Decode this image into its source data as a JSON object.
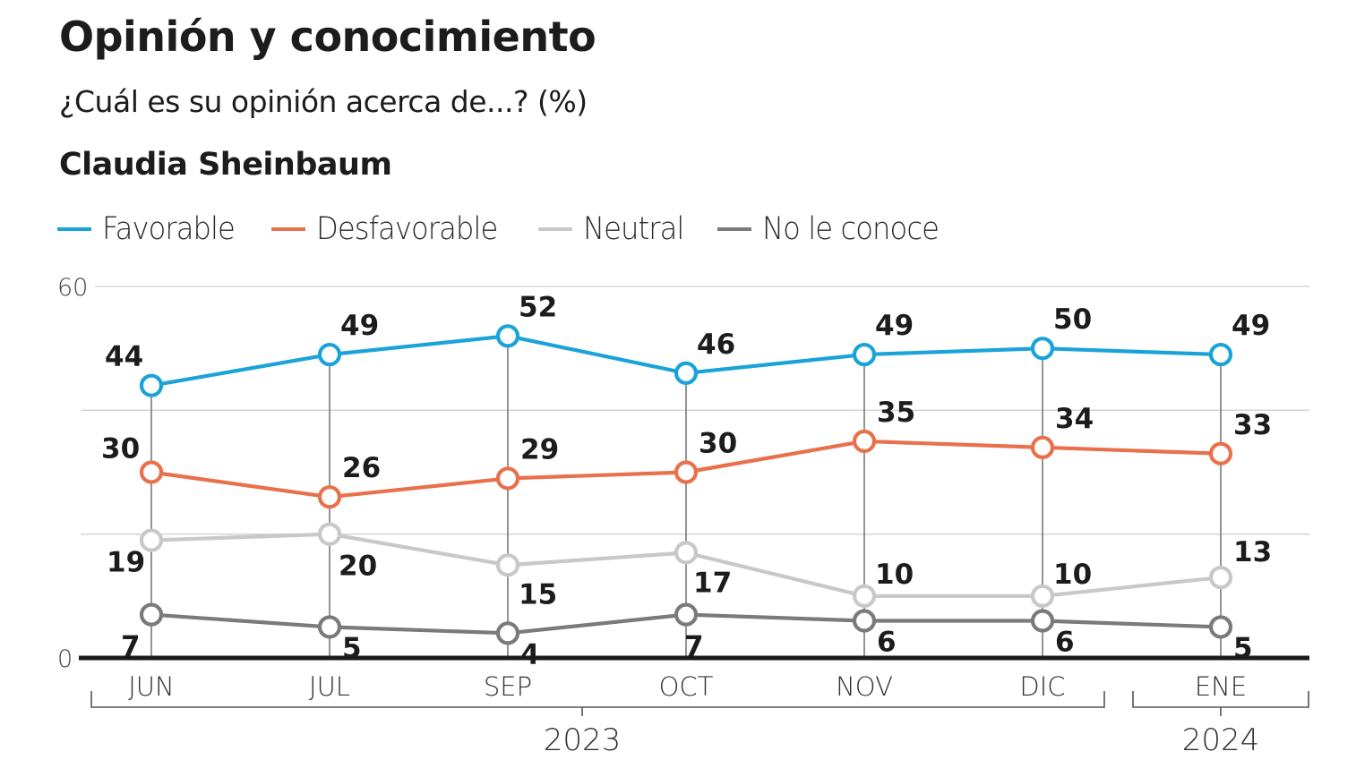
{
  "header": {
    "title": "Opinión y conocimiento",
    "subtitle": "¿Cuál es su opinión acerca de...? (%)",
    "person": "Claudia Sheinbaum"
  },
  "chart_data": {
    "type": "line",
    "title": "Opinión y conocimiento",
    "subtitle": "¿Cuál es su opinión acerca de...? (%)",
    "panel_title": "Claudia Sheinbaum",
    "xlabel": "",
    "ylabel": "",
    "categories": [
      "JUN",
      "JUL",
      "SEP",
      "OCT",
      "NOV",
      "DIC",
      "ENE"
    ],
    "year_groups": [
      {
        "label": "2023",
        "from": "JUN",
        "to": "DIC"
      },
      {
        "label": "2024",
        "from": "ENE",
        "to": "ENE"
      }
    ],
    "ylim": [
      0,
      60
    ],
    "yticks": [
      0,
      20,
      40,
      60
    ],
    "ytick_labels": [
      "0",
      "",
      "",
      "60"
    ],
    "grid": true,
    "legend_position": "top-left",
    "series": [
      {
        "name": "Favorable",
        "color": "#1aa3d9",
        "values": [
          44,
          49,
          52,
          46,
          49,
          50,
          49
        ],
        "labels": [
          "44",
          "49",
          "52",
          "46",
          "49",
          "50",
          "49"
        ]
      },
      {
        "name": "Desfavorable",
        "color": "#e8704a",
        "values": [
          30,
          26,
          29,
          30,
          35,
          34,
          33
        ],
        "labels": [
          "30",
          "26",
          "29",
          "30",
          "35",
          "34",
          "33"
        ]
      },
      {
        "name": "Neutral",
        "color": "#c8c8c8",
        "values": [
          19,
          20,
          15,
          17,
          10,
          10,
          13
        ],
        "labels": [
          "19",
          "20",
          "15",
          "17",
          "10",
          "10",
          "13"
        ]
      },
      {
        "name": "No le conoce",
        "color": "#7a7a7a",
        "values": [
          7,
          5,
          4,
          7,
          6,
          6,
          5
        ],
        "labels": [
          "7",
          "5",
          "4",
          "7",
          "6",
          "6",
          "5"
        ]
      }
    ]
  }
}
